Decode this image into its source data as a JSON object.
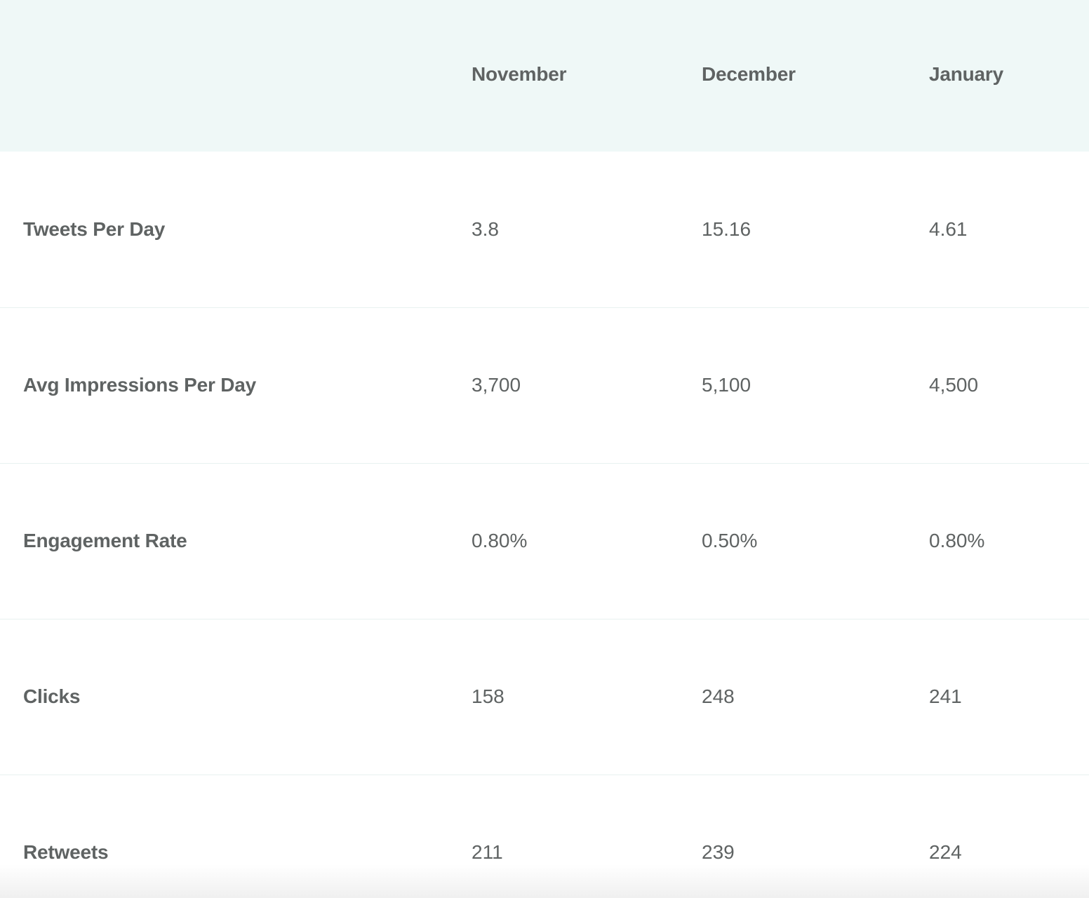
{
  "chart_data": {
    "type": "table",
    "columns": [
      "",
      "November",
      "December",
      "January"
    ],
    "rows": [
      {
        "label": "Tweets Per Day",
        "values": [
          "3.8",
          "15.16",
          "4.61"
        ]
      },
      {
        "label": "Avg Impressions Per Day",
        "values": [
          "3,700",
          "5,100",
          "4,500"
        ]
      },
      {
        "label": "Engagement Rate",
        "values": [
          "0.80%",
          "0.50%",
          "0.80%"
        ]
      },
      {
        "label": "Clicks",
        "values": [
          "158",
          "248",
          "241"
        ]
      },
      {
        "label": "Retweets",
        "values": [
          "211",
          "239",
          "224"
        ]
      }
    ]
  },
  "colors": {
    "header_background": "#eff8f7",
    "text": "#5f6363",
    "row_divider": "#e8f1f0"
  }
}
